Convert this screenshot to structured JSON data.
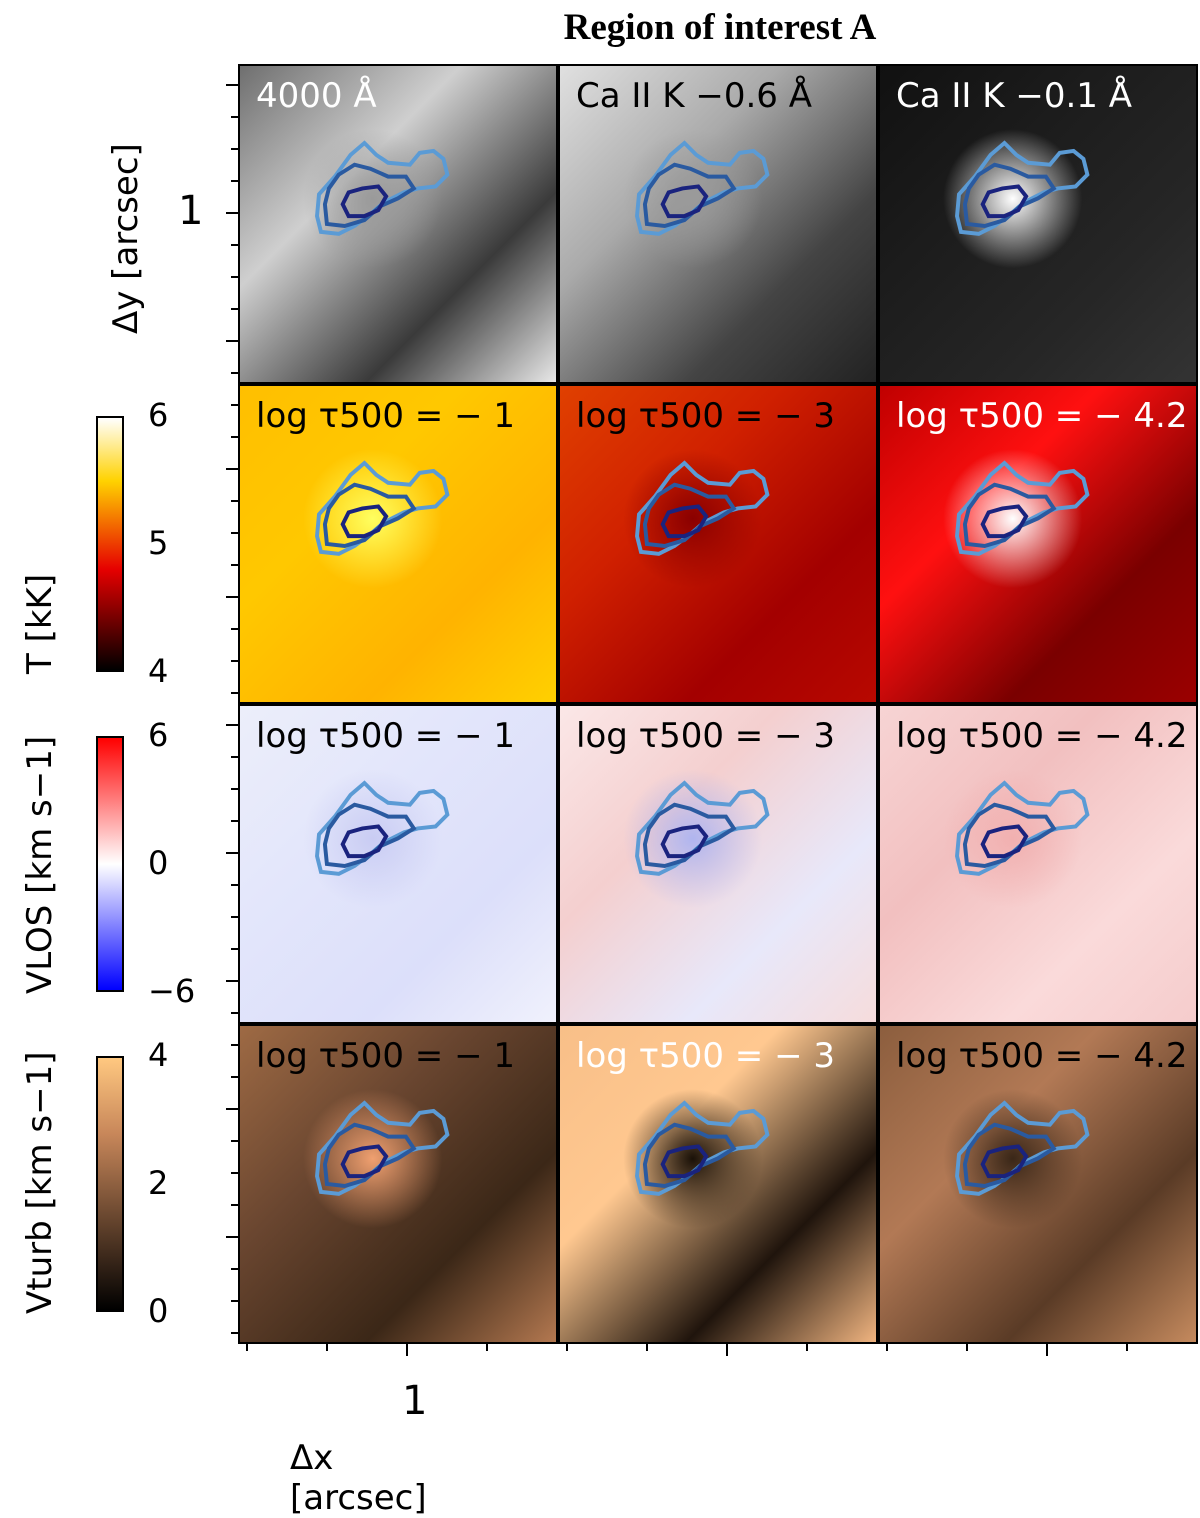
{
  "chart_data": {
    "type": "heatmap",
    "title": "Region of interest A",
    "xlabel": "Δx [arcsec]",
    "x_tick_labels": [
      "1"
    ],
    "y_tick_label": "1",
    "rows": [
      {
        "ylabel": "Δy [arcsec]",
        "colorscale": "gray",
        "panels": [
          {
            "label": "4000 Å",
            "label_color": "#ffffff"
          },
          {
            "label": "Ca II K −0.6 Å",
            "label_color": "#000000"
          },
          {
            "label": "Ca II K −0.1 Å",
            "label_color": "#ffffff"
          }
        ]
      },
      {
        "ylabel": "T [kK]",
        "colorscale": "hot",
        "colorbar": {
          "ticks": [
            "6",
            "5",
            "4"
          ],
          "range": [
            4,
            6
          ]
        },
        "panels": [
          {
            "label": "log τ500 = − 1",
            "label_color": "#000000"
          },
          {
            "label": "log τ500 = − 3",
            "label_color": "#000000"
          },
          {
            "label": "log τ500 = − 4.2",
            "label_color": "#ffffff"
          }
        ]
      },
      {
        "ylabel": "VLOS [km s−1]",
        "colorscale": "bwr",
        "colorbar": {
          "ticks": [
            "6",
            "0",
            "−6"
          ],
          "range": [
            -6,
            6
          ]
        },
        "panels": [
          {
            "label": "log τ500 = − 1",
            "label_color": "#000000"
          },
          {
            "label": "log τ500 = − 3",
            "label_color": "#000000"
          },
          {
            "label": "log τ500 = − 4.2",
            "label_color": "#000000"
          }
        ]
      },
      {
        "ylabel": "Vturb [km s−1]",
        "colorscale": "copper",
        "colorbar": {
          "ticks": [
            "4",
            "2",
            "0"
          ],
          "range": [
            0,
            4
          ]
        },
        "panels": [
          {
            "label": "log τ500 = − 1",
            "label_color": "#000000"
          },
          {
            "label": "log τ500 = − 3",
            "label_color": "#ffffff"
          },
          {
            "label": "log τ500 = − 4.2",
            "label_color": "#000000"
          }
        ]
      }
    ],
    "contour_colors": [
      "#1a237e",
      "#2a5aa0",
      "#5b9bd5"
    ]
  }
}
